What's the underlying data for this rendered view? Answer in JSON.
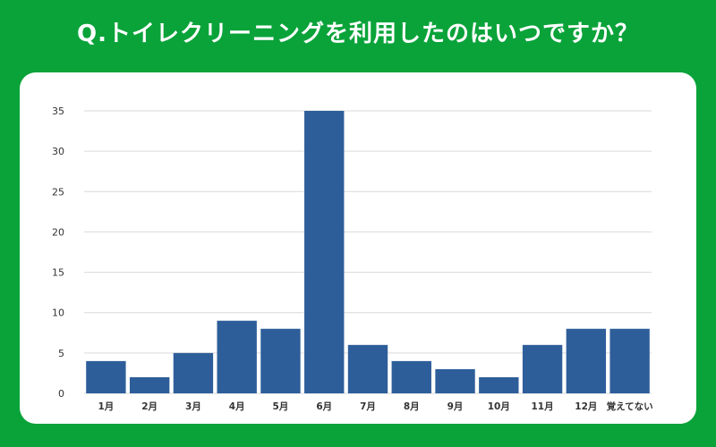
{
  "header": {
    "question": "Q.トイレクリーニングを利用したのはいつですか？"
  },
  "chart_data": {
    "type": "bar",
    "title": "Q.トイレクリーニングを利用したのはいつですか？",
    "categories": [
      "1月",
      "2月",
      "3月",
      "4月",
      "5月",
      "6月",
      "7月",
      "8月",
      "9月",
      "10月",
      "11月",
      "12月",
      "覚えてない"
    ],
    "values": [
      4,
      2,
      5,
      9,
      8,
      35,
      6,
      4,
      3,
      2,
      6,
      8,
      8
    ],
    "yticks": [
      0,
      5,
      10,
      15,
      20,
      25,
      30,
      35
    ],
    "ylim": [
      0,
      35
    ],
    "xlabel": "",
    "ylabel": "",
    "grid": true,
    "legend": "none",
    "colors": {
      "bar": "#2e5e9a",
      "grid": "#d9d9d9",
      "axis_text": "#333333",
      "background": "#0aa33a",
      "card": "#ffffff"
    }
  }
}
